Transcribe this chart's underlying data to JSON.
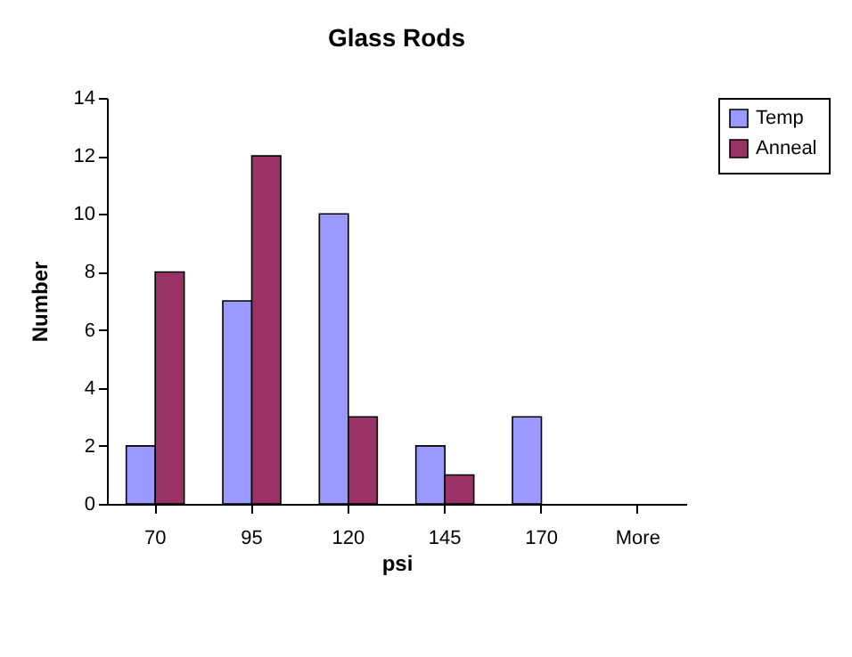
{
  "chart_data": {
    "type": "bar",
    "title": "Glass Rods",
    "xlabel": "psi",
    "ylabel": "Number",
    "categories": [
      "70",
      "95",
      "120",
      "145",
      "170",
      "More"
    ],
    "series": [
      {
        "name": "Temp",
        "color": "#9999ff",
        "values": [
          2,
          7,
          10,
          2,
          3,
          0
        ]
      },
      {
        "name": "Anneal",
        "color": "#993366",
        "values": [
          8,
          12,
          3,
          1,
          0,
          0
        ]
      }
    ],
    "ylim": [
      0,
      14
    ],
    "yticks": [
      0,
      2,
      4,
      6,
      8,
      10,
      12,
      14
    ],
    "grid": false,
    "legend": "right"
  }
}
